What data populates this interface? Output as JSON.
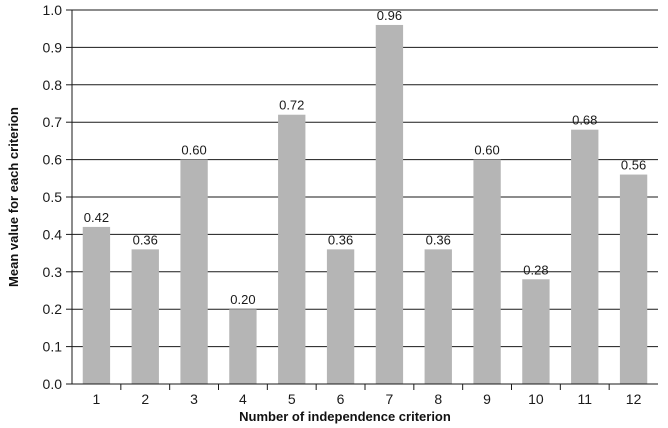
{
  "chart_data": {
    "type": "bar",
    "categories": [
      "1",
      "2",
      "3",
      "4",
      "5",
      "6",
      "7",
      "8",
      "9",
      "10",
      "11",
      "12"
    ],
    "values": [
      0.42,
      0.36,
      0.6,
      0.2,
      0.72,
      0.36,
      0.96,
      0.36,
      0.6,
      0.28,
      0.68,
      0.56
    ],
    "data_labels": [
      "0.42",
      "0.36",
      "0.60",
      "0.20",
      "0.72",
      "0.36",
      "0.96",
      "0.36",
      "0.60",
      "0.28",
      "0.68",
      "0.56"
    ],
    "xlabel": "Number of independence criterion",
    "ylabel": "Mean value for each criterion",
    "ylim": [
      0,
      1.0
    ],
    "yticks": [
      "0.0",
      "0.1",
      "0.2",
      "0.3",
      "0.4",
      "0.5",
      "0.6",
      "0.7",
      "0.8",
      "0.9",
      "1.0"
    ],
    "grid": true,
    "bar_color": "#b5b5b5",
    "grid_color": "#1a1a1a"
  }
}
